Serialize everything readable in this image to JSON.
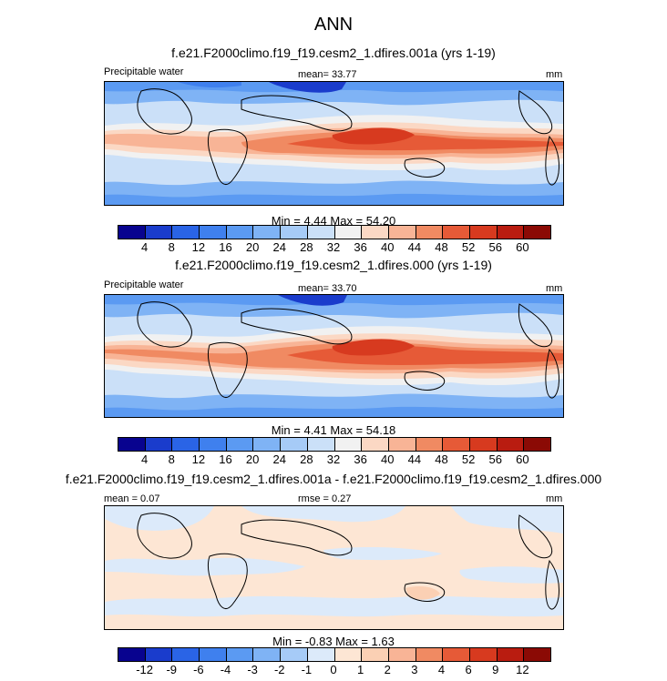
{
  "header": {
    "title": "ANN"
  },
  "panels": [
    {
      "title": "f.e21.F2000climo.f19_f19.cesm2_1.dfires.001a (yrs 1-19)",
      "left_label": "Precipitable water",
      "center_label": "mean=  33.77",
      "right_label": "mm",
      "minmax": "Min =   4.44  Max =  54.20"
    },
    {
      "title": "f.e21.F2000climo.f19_f19.cesm2_1.dfires.000 (yrs 1-19)",
      "left_label": "Precipitable water",
      "center_label": "mean=  33.70",
      "right_label": "mm",
      "minmax": "Min =   4.41  Max =  54.18"
    },
    {
      "title": "f.e21.F2000climo.f19_f19.cesm2_1.dfires.001a - f.e21.F2000climo.f19_f19.cesm2_1.dfires.000",
      "left_label": "mean =   0.07",
      "center_label": "rmse =   0.27",
      "right_label": "mm",
      "minmax": "Min =  -0.83  Max =   1.63"
    }
  ],
  "colorbars": {
    "abs": {
      "labels": [
        "4",
        "8",
        "12",
        "16",
        "20",
        "24",
        "28",
        "32",
        "36",
        "40",
        "44",
        "48",
        "52",
        "56",
        "60"
      ],
      "colors": [
        "#08038f",
        "#1a3ccc",
        "#2a64e6",
        "#3f80ee",
        "#5b9af2",
        "#7fb3f5",
        "#a6cbf7",
        "#cbe0f8",
        "#f1f1f1",
        "#fbd8c4",
        "#f8b496",
        "#f08a62",
        "#e65a37",
        "#d73a1f",
        "#b91c10",
        "#8b0a05"
      ]
    },
    "diff": {
      "labels": [
        "-12",
        "-9",
        "-6",
        "-4",
        "-3",
        "-2",
        "-1",
        "0",
        "1",
        "2",
        "3",
        "4",
        "6",
        "9",
        "12"
      ],
      "colors": [
        "#08038f",
        "#1a3ccc",
        "#2a64e6",
        "#3f80ee",
        "#5b9af2",
        "#7fb3f5",
        "#a6cbf7",
        "#dceafa",
        "#fde6d4",
        "#fbd0b4",
        "#f8b496",
        "#f08a62",
        "#e65a37",
        "#d73a1f",
        "#b91c10",
        "#8b0a05"
      ]
    }
  }
}
